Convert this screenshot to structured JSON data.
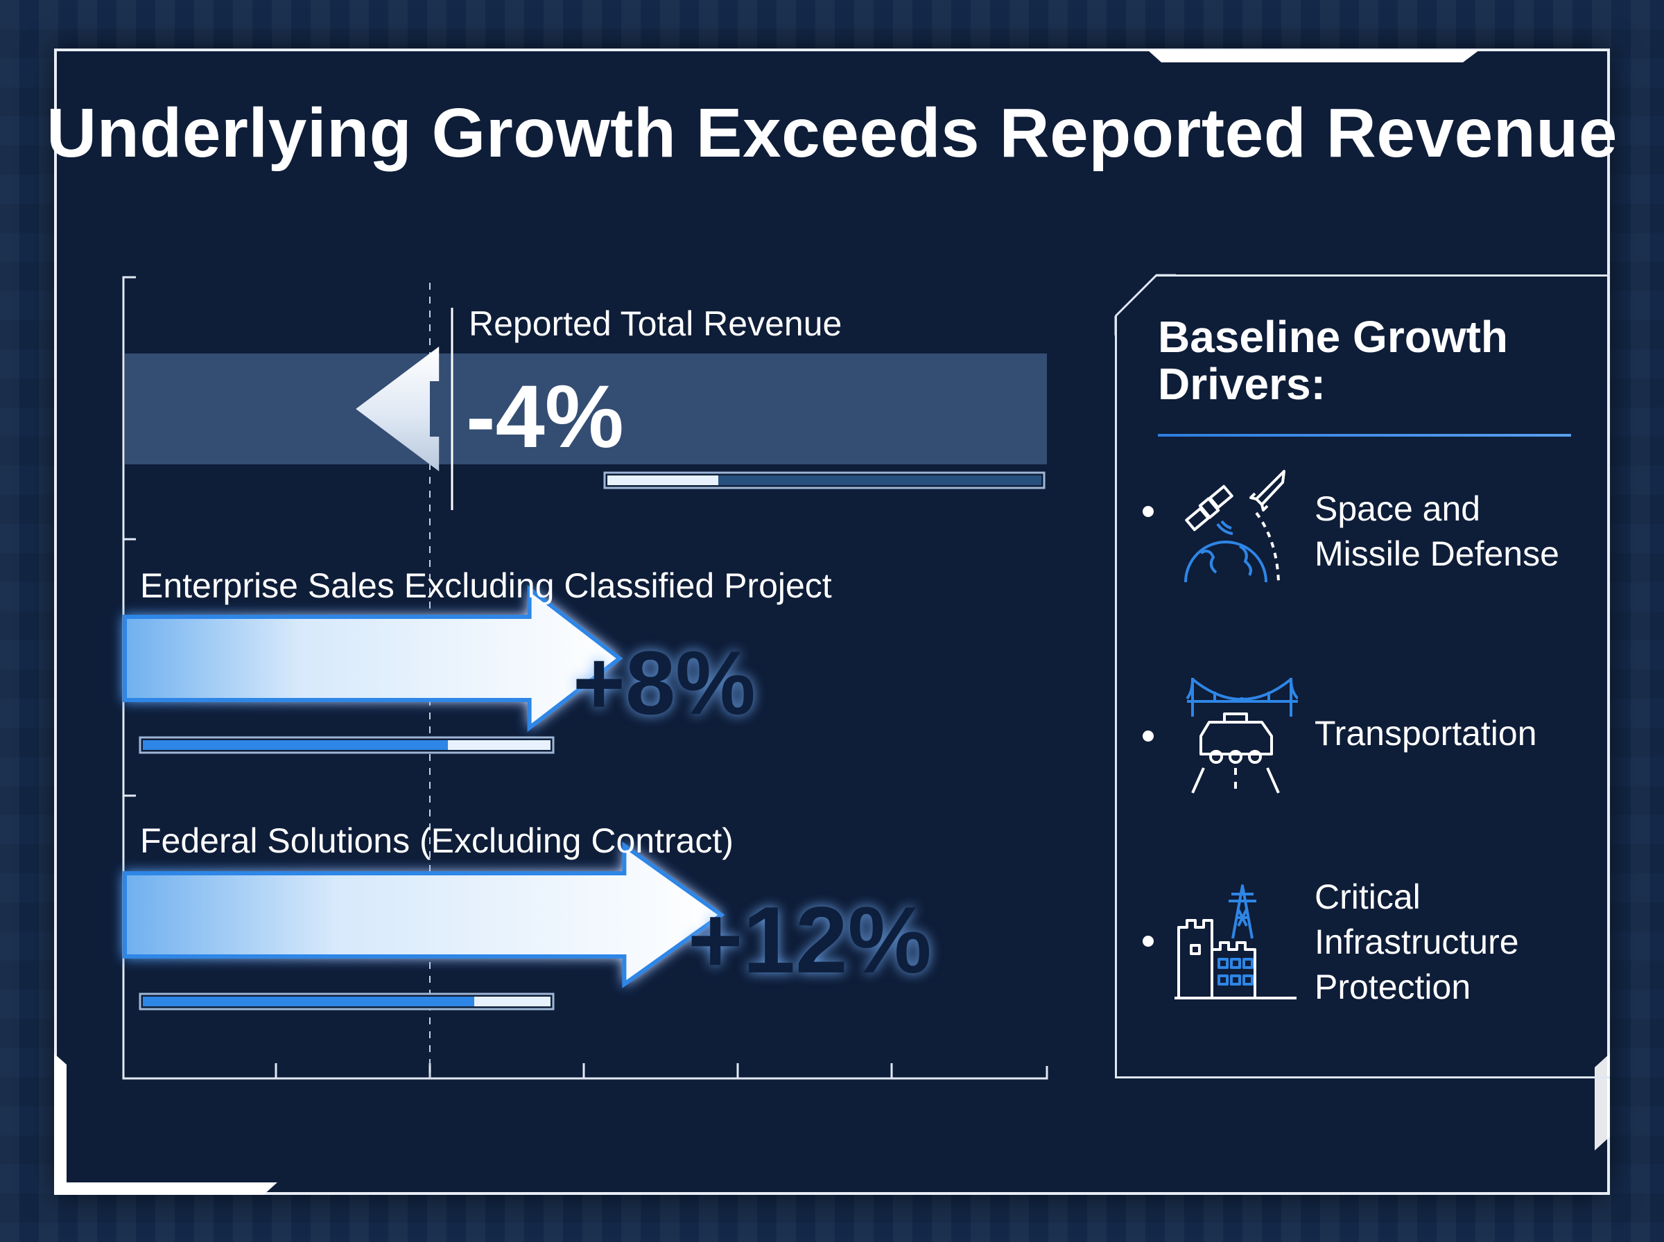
{
  "title": "Underlying Growth Exceeds Reported Revenue",
  "chart_data": {
    "type": "bar",
    "orientation": "horizontal",
    "categories": [
      "Reported Total Revenue",
      "Enterprise Sales Excluding Classified Project",
      "Federal Solutions (Excluding Contract)"
    ],
    "values": [
      -4,
      8,
      12
    ],
    "value_labels": [
      "-4%",
      "+8%",
      "+12%"
    ],
    "unit": "%",
    "grid": false
  },
  "drivers": {
    "title": "Baseline Growth Drivers:",
    "items": [
      {
        "label": "Space and\nMissile Defense",
        "icon": "satellite-missile-globe-icon"
      },
      {
        "label": "Transportation",
        "icon": "bridge-vehicle-road-icon"
      },
      {
        "label": "Critical\nInfrastructure\nProtection",
        "icon": "fortress-pylon-icon"
      }
    ]
  },
  "colors": {
    "panel": "#0e1d38",
    "accent": "#2e86e6",
    "arrow_light": "#e8f2ff",
    "text": "#ffffff"
  }
}
